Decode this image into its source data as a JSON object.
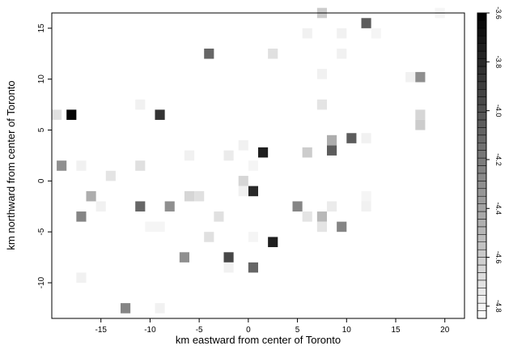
{
  "chart_data": {
    "type": "heatmap",
    "title": "",
    "xlabel": "km eastward from center of Toronto",
    "ylabel": "km northward from center of Toronto",
    "xlim": [
      -20,
      22
    ],
    "ylim": [
      -13.5,
      16.5
    ],
    "x_ticks": [
      -15,
      -10,
      -5,
      0,
      5,
      10,
      15,
      20
    ],
    "y_ticks": [
      -10,
      -5,
      0,
      5,
      10,
      15
    ],
    "cell_size_km": 1,
    "color_scale": {
      "min": -4.85,
      "max": -3.6,
      "low_color": "#ffffff",
      "high_color": "#000000",
      "ticks": [
        -4.8,
        -4.6,
        -4.4,
        -4.2,
        -4.0,
        -3.8,
        -3.6
      ],
      "tick_labels": [
        "-4.8",
        "-4.6",
        "-4.4",
        "-4.2",
        "-4.0",
        "-3.8",
        "-3.6"
      ]
    },
    "cells": [
      {
        "x": -18,
        "y": 6.5,
        "value": -3.62
      },
      {
        "x": -9,
        "y": 6.5,
        "value": -3.85
      },
      {
        "x": -19.5,
        "y": 6.5,
        "value": -4.7
      },
      {
        "x": -19,
        "y": 1.5,
        "value": -4.3
      },
      {
        "x": -17,
        "y": 1.5,
        "value": -4.78
      },
      {
        "x": -14,
        "y": 0.5,
        "value": -4.72
      },
      {
        "x": -16,
        "y": -1.5,
        "value": -4.45
      },
      {
        "x": -15,
        "y": -2.5,
        "value": -4.78
      },
      {
        "x": -17,
        "y": -3.5,
        "value": -4.25
      },
      {
        "x": -11,
        "y": -2.5,
        "value": -4.1
      },
      {
        "x": -11,
        "y": 1.5,
        "value": -4.7
      },
      {
        "x": -11,
        "y": 7.5,
        "value": -4.78
      },
      {
        "x": -10,
        "y": -4.5,
        "value": -4.8
      },
      {
        "x": -9,
        "y": -4.5,
        "value": -4.8
      },
      {
        "x": -8,
        "y": -2.5,
        "value": -4.3
      },
      {
        "x": -6,
        "y": -1.5,
        "value": -4.65
      },
      {
        "x": -5,
        "y": -1.5,
        "value": -4.7
      },
      {
        "x": -4,
        "y": -5.5,
        "value": -4.7
      },
      {
        "x": -6,
        "y": 2.5,
        "value": -4.78
      },
      {
        "x": -4,
        "y": 12.5,
        "value": -4.1
      },
      {
        "x": -2,
        "y": 2.5,
        "value": -4.75
      },
      {
        "x": -3,
        "y": -3.5,
        "value": -4.7
      },
      {
        "x": -6.5,
        "y": -7.5,
        "value": -4.3
      },
      {
        "x": -2,
        "y": -7.5,
        "value": -3.95
      },
      {
        "x": -2,
        "y": -8.5,
        "value": -4.78
      },
      {
        "x": 0.5,
        "y": -8.5,
        "value": -4.1
      },
      {
        "x": 0.5,
        "y": -5.5,
        "value": -4.8
      },
      {
        "x": 2.5,
        "y": -6.0,
        "value": -3.75
      },
      {
        "x": 0.5,
        "y": -1.0,
        "value": -3.8
      },
      {
        "x": -0.5,
        "y": 0.0,
        "value": -4.65
      },
      {
        "x": -0.5,
        "y": -1.0,
        "value": -4.78
      },
      {
        "x": -0.5,
        "y": 3.5,
        "value": -4.78
      },
      {
        "x": 0.5,
        "y": 1.5,
        "value": -4.8
      },
      {
        "x": 1.5,
        "y": 2.8,
        "value": -3.75
      },
      {
        "x": 2.5,
        "y": 12.5,
        "value": -4.7
      },
      {
        "x": 5,
        "y": -2.5,
        "value": -4.25
      },
      {
        "x": 6,
        "y": -3.5,
        "value": -4.72
      },
      {
        "x": 6,
        "y": 14.5,
        "value": -4.78
      },
      {
        "x": 6,
        "y": 2.8,
        "value": -4.6
      },
      {
        "x": 7.5,
        "y": -3.5,
        "value": -4.5
      },
      {
        "x": 7.5,
        "y": -4.5,
        "value": -4.72
      },
      {
        "x": 7.5,
        "y": 7.5,
        "value": -4.72
      },
      {
        "x": 7.5,
        "y": 10.5,
        "value": -4.78
      },
      {
        "x": 7.5,
        "y": 16.5,
        "value": -4.6
      },
      {
        "x": 8.5,
        "y": 3.0,
        "value": -4.05
      },
      {
        "x": 8.5,
        "y": 4.0,
        "value": -4.45
      },
      {
        "x": 8.5,
        "y": -2.5,
        "value": -4.75
      },
      {
        "x": 9.5,
        "y": -4.5,
        "value": -4.25
      },
      {
        "x": 9.5,
        "y": 14.5,
        "value": -4.78
      },
      {
        "x": 9.5,
        "y": 12.5,
        "value": -4.78
      },
      {
        "x": 10.5,
        "y": 4.2,
        "value": -4.05
      },
      {
        "x": 12,
        "y": 15.5,
        "value": -4.05
      },
      {
        "x": 13,
        "y": 14.5,
        "value": -4.8
      },
      {
        "x": 12,
        "y": -2.5,
        "value": -4.78
      },
      {
        "x": 12,
        "y": -1.5,
        "value": -4.8
      },
      {
        "x": 12,
        "y": 4.2,
        "value": -4.78
      },
      {
        "x": 16.5,
        "y": 10.2,
        "value": -4.78
      },
      {
        "x": 17.5,
        "y": 10.2,
        "value": -4.3
      },
      {
        "x": 17.5,
        "y": 5.5,
        "value": -4.6
      },
      {
        "x": 17.5,
        "y": 6.5,
        "value": -4.65
      },
      {
        "x": -9,
        "y": -12.5,
        "value": -4.78
      },
      {
        "x": -12.5,
        "y": -12.5,
        "value": -4.25
      },
      {
        "x": -17,
        "y": -9.5,
        "value": -4.78
      },
      {
        "x": 19.5,
        "y": 16.5,
        "value": -4.8
      }
    ]
  }
}
